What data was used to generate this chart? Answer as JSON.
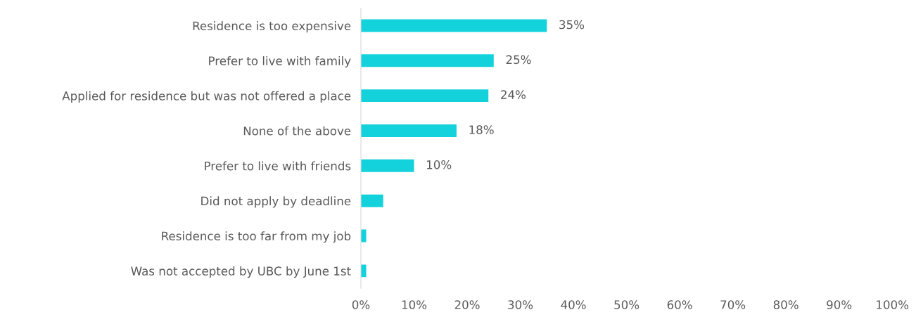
{
  "chart_data": {
    "type": "bar",
    "orientation": "horizontal",
    "categories": [
      "Residence is too expensive",
      "Prefer to live with family",
      "Applied for residence but was not offered a place",
      "None of the above",
      "Prefer to live with friends",
      "Did not apply by deadline",
      "Residence is too far from my job",
      "Was not accepted by UBC by June 1st"
    ],
    "values": [
      35,
      25,
      24,
      18,
      10,
      4.2,
      1,
      1
    ],
    "value_labels": [
      "35%",
      "25%",
      "24%",
      "18%",
      "10%",
      null,
      null,
      null
    ],
    "color": "#14d2dc",
    "xlim": [
      0,
      100
    ],
    "xticks": [
      {
        "value": 0,
        "label": "0%"
      },
      {
        "value": 10,
        "label": "10%"
      },
      {
        "value": 20,
        "label": "20%"
      },
      {
        "value": 30,
        "label": "30%"
      },
      {
        "value": 40,
        "label": "40%"
      },
      {
        "value": 50,
        "label": "50%"
      },
      {
        "value": 60,
        "label": "60%"
      },
      {
        "value": 70,
        "label": "70%"
      },
      {
        "value": 80,
        "label": "80%"
      },
      {
        "value": 90,
        "label": "90%"
      },
      {
        "value": 100,
        "label": "100%"
      }
    ],
    "grid": false,
    "legend": false
  }
}
